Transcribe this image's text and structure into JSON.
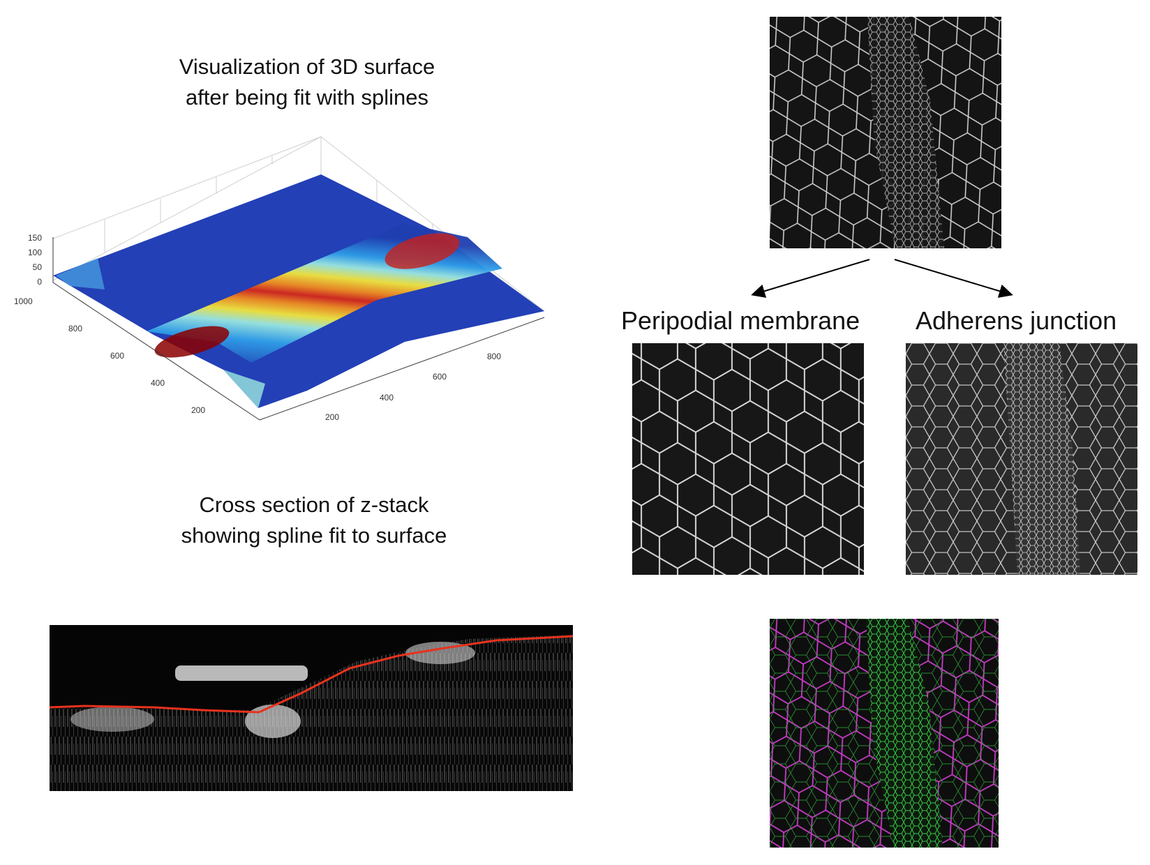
{
  "surface": {
    "title_line1": "Visualization of 3D surface",
    "title_line2": "after being fit with splines",
    "z_ticks": [
      "150",
      "100",
      "50",
      "0"
    ],
    "y_ticks": [
      "1000",
      "800",
      "600",
      "400",
      "200"
    ],
    "x_ticks": [
      "200",
      "400",
      "600",
      "800"
    ]
  },
  "cross_section": {
    "title_line1": "Cross section of z-stack",
    "title_line2": "showing spline fit to surface"
  },
  "membranes": {
    "peripodial_label": "Peripodial membrane",
    "adherens_label": "Adherens junction"
  },
  "colors": {
    "spline_line": "#e8321e",
    "overlay_magenta": "#c63cc6",
    "overlay_green": "#3ccf4a"
  }
}
